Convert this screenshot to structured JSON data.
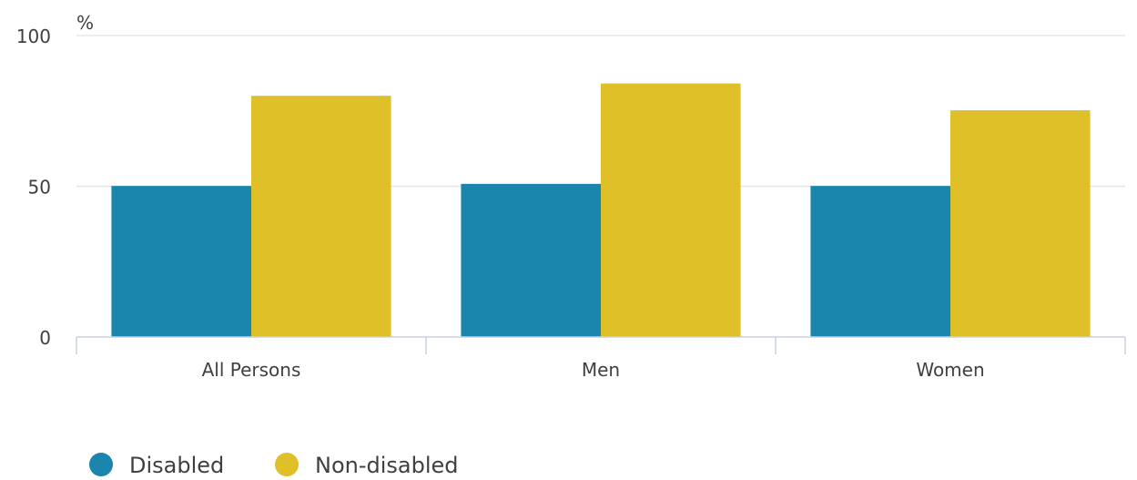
{
  "chart_data": {
    "type": "bar",
    "unit_label": "%",
    "categories": [
      "All Persons",
      "Men",
      "Women"
    ],
    "series": [
      {
        "name": "Disabled",
        "color": "#1a85ad",
        "values": [
          50.1,
          50.8,
          50.1
        ]
      },
      {
        "name": "Non-disabled",
        "color": "#e0c028",
        "values": [
          80.0,
          84.1,
          75.2
        ]
      }
    ],
    "ylim": [
      0,
      100
    ],
    "yticks": [
      0,
      50,
      100
    ],
    "grid": true,
    "legend_position": "bottom-left"
  }
}
